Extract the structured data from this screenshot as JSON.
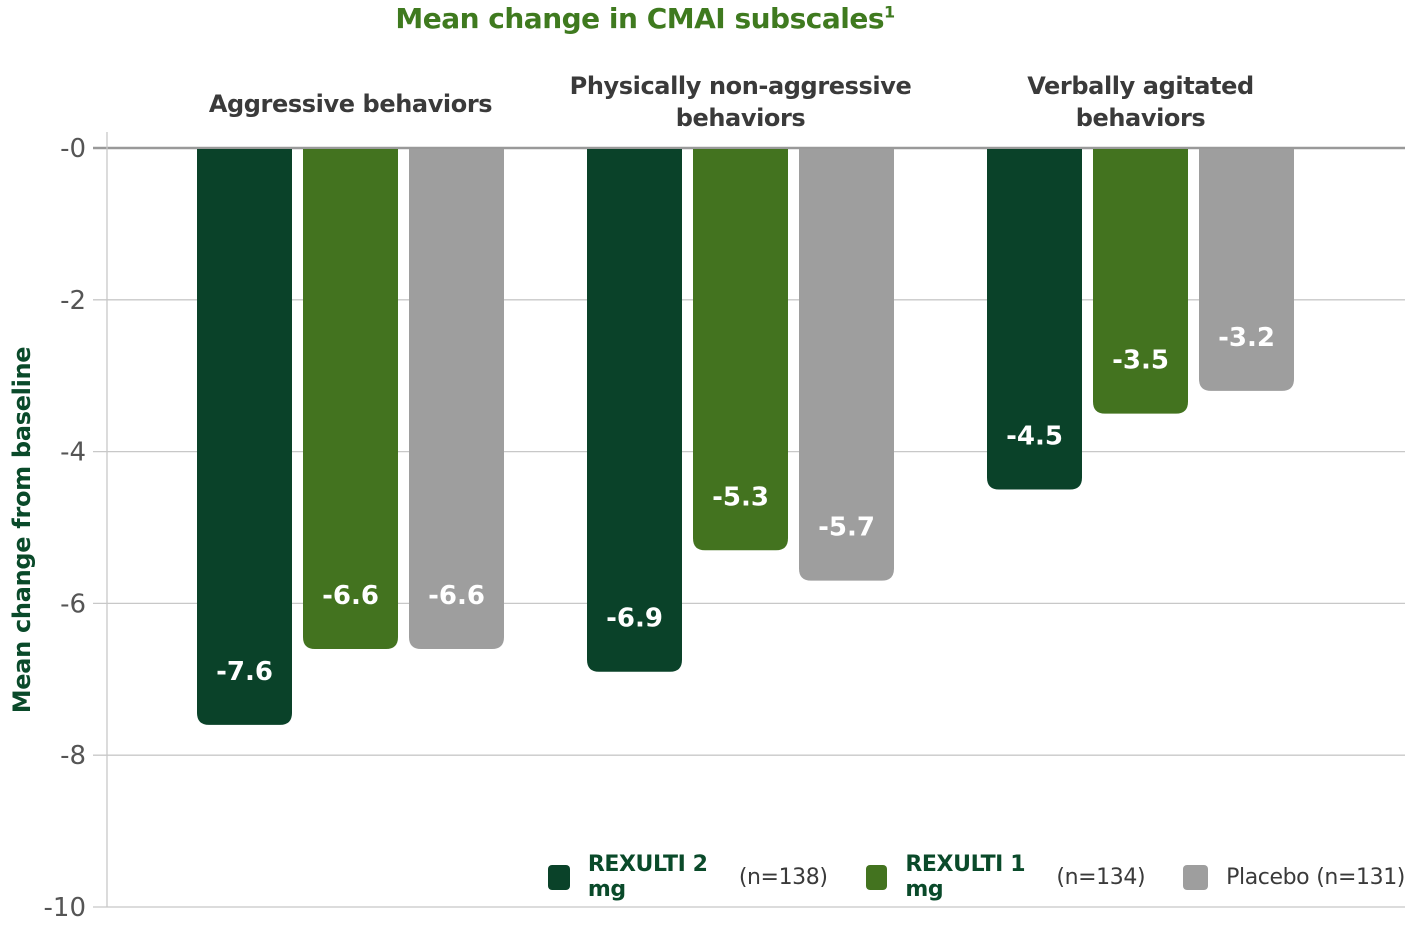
{
  "colors": {
    "title": "#3f7a1f",
    "ylabel": "#0a4a2a",
    "category_label": "#3a3a3a",
    "tick": "#555555",
    "grid": "#c8c8c8",
    "axis": "#999999",
    "data_label": "#ffffff",
    "legend_text": "#0a4a2a"
  },
  "chart_data": {
    "type": "bar",
    "title": "Mean change in CMAI subscales",
    "title_superscript": "1",
    "ylabel": "Mean change from baseline",
    "xlabel": "",
    "ylim": [
      -10,
      0
    ],
    "yticks": [
      0,
      -2,
      -4,
      -6,
      -8,
      -10
    ],
    "ytick_labels": [
      "-0",
      "-2",
      "-4",
      "-6",
      "-8",
      "-10"
    ],
    "grid": true,
    "legend_position": "bottom-right",
    "categories": [
      [
        "Aggressive behaviors"
      ],
      [
        "Physically non-aggressive",
        "behaviors"
      ],
      [
        "Verbally agitated",
        "behaviors"
      ]
    ],
    "series": [
      {
        "name": "REXULTI 2 mg",
        "n_label": "(n=138)",
        "color": "#0a4229",
        "values": [
          -7.6,
          -6.9,
          -4.5
        ],
        "labels": [
          "-7.6",
          "-6.9",
          "-4.5"
        ]
      },
      {
        "name": "REXULTI 1 mg",
        "n_label": "(n=134)",
        "color": "#43731f",
        "values": [
          -6.6,
          -5.3,
          -3.5
        ],
        "labels": [
          "-6.6",
          "-5.3",
          "-3.5"
        ]
      },
      {
        "name": "Placebo",
        "n_label": "(n=131)",
        "color": "#9e9e9e",
        "values": [
          -6.6,
          -5.7,
          -3.2
        ],
        "labels": [
          "-6.6",
          "-5.7",
          "-3.2"
        ]
      }
    ]
  }
}
